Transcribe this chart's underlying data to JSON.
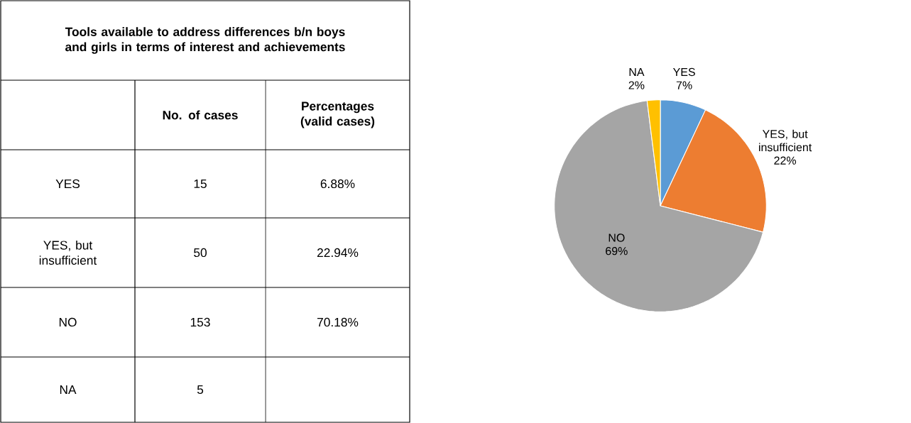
{
  "chart_data": [
    {
      "type": "other",
      "title": "Tools available to address differences b/n boys and girls in terms of interest and achievements",
      "categories": [
        "YES",
        "YES, but insufficient",
        "NO",
        "NA"
      ],
      "data_labels": true,
      "series": [
        {
          "name": "No. of cases",
          "values": [
            15,
            50,
            153,
            5
          ]
        },
        {
          "name": "Percentages (valid cases)",
          "values": [
            6.88,
            22.94,
            70.18,
            null
          ],
          "value_labels": [
            "6.88%",
            "22.94%",
            "70.18%",
            null
          ]
        }
      ]
    },
    {
      "type": "pie",
      "categories": [
        "YES",
        "YES, but insufficient",
        "NO",
        "NA"
      ],
      "values": [
        7,
        22,
        69,
        2
      ],
      "colors": [
        "#5b9bd5",
        "#ed7d31",
        "#a5a5a5",
        "#ffc000"
      ],
      "value_labels": [
        "7%",
        "22%",
        "69%",
        "2%"
      ]
    }
  ]
}
